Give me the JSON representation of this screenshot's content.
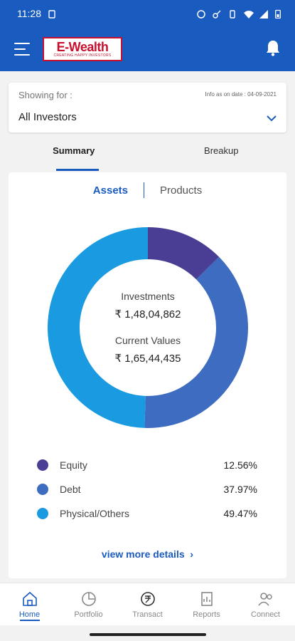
{
  "status_bar": {
    "time": "11:28"
  },
  "app": {
    "logo_main": "E-Wealth",
    "logo_tag": "CREATING HAPPY INVESTORS"
  },
  "filter": {
    "showing_label": "Showing for :",
    "info_date": "Info as on date : 04-09-2021",
    "selected": "All Investors"
  },
  "tabs": [
    {
      "label": "Summary",
      "active": true
    },
    {
      "label": "Breakup",
      "active": false
    }
  ],
  "subtabs": [
    {
      "label": "Assets",
      "active": true
    },
    {
      "label": "Products",
      "active": false
    }
  ],
  "donut": {
    "investments_label": "Investments",
    "investments_value": "₹ 1,48,04,862",
    "current_label": "Current Values",
    "current_value": "₹ 1,65,44,435"
  },
  "chart_data": {
    "type": "pie",
    "categories": [
      "Equity",
      "Debt",
      "Physical/Others"
    ],
    "values": [
      12.56,
      37.97,
      49.47
    ],
    "colors": [
      "#493e94",
      "#3e6cc1",
      "#1a9ae0"
    ]
  },
  "legend": [
    {
      "name": "Equity",
      "pct": "12.56%",
      "color": "#493e94"
    },
    {
      "name": "Debt",
      "pct": "37.97%",
      "color": "#3e6cc1"
    },
    {
      "name": "Physical/Others",
      "pct": "49.47%",
      "color": "#1a9ae0"
    }
  ],
  "more_link": "view more details",
  "bottom_nav": [
    {
      "label": "Home",
      "icon": "home-icon",
      "active": true
    },
    {
      "label": "Portfolio",
      "icon": "portfolio-icon",
      "active": false
    },
    {
      "label": "Transact",
      "icon": "transact-icon",
      "active": false
    },
    {
      "label": "Reports",
      "icon": "reports-icon",
      "active": false
    },
    {
      "label": "Connect",
      "icon": "connect-icon",
      "active": false
    }
  ],
  "colors": {
    "brand": "#1a5bbf",
    "logo_red": "#c8102e"
  }
}
